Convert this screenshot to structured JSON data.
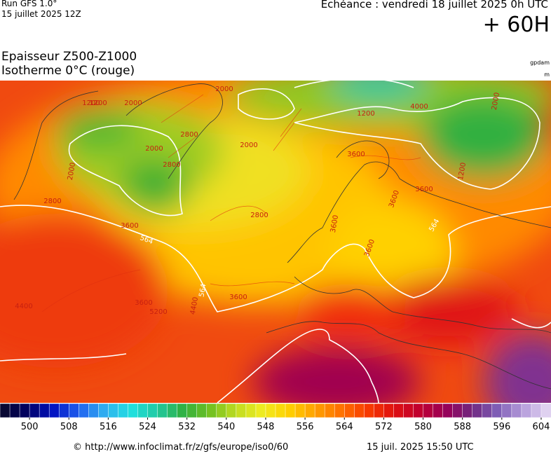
{
  "header": {
    "run": "Run GFS 1.0°",
    "run_date": "15 juillet 2025 12Z",
    "valid": "Echéance : vendredi 18 juillet 2025 0h UTC",
    "lead": "+ 60H",
    "title": "Epaisseur Z500-Z1000",
    "subtitle": "Isotherme 0°C (rouge)",
    "unit_main": "gpdam",
    "unit_iso": "m"
  },
  "map": {
    "contour_labels": [
      "1200",
      "2000",
      "2000",
      "2800",
      "2000",
      "2800",
      "3600",
      "564",
      "2000",
      "2800",
      "3600",
      "564",
      "4400",
      "3600",
      "5200",
      "4400",
      "2000",
      "2800",
      "1200",
      "4000",
      "1200",
      "2000",
      "3600",
      "3600",
      "3600",
      "564",
      "1200",
      "3600",
      "3600"
    ]
  },
  "colorbar": {
    "ticks": [
      500,
      508,
      516,
      524,
      532,
      540,
      548,
      556,
      564,
      572,
      580,
      588,
      596,
      604
    ],
    "range": [
      494,
      606
    ],
    "colors": [
      "#0a0a28",
      "#000060",
      "#0010c0",
      "#2060f0",
      "#30b0f0",
      "#20e0e0",
      "#20c8a0",
      "#30b040",
      "#70c020",
      "#c0dc20",
      "#f0ec20",
      "#ffd000",
      "#ffa000",
      "#ff7000",
      "#f83c00",
      "#e01010",
      "#c00030",
      "#980058",
      "#702880",
      "#8060b8",
      "#b8a0dc",
      "#e8dcf4"
    ]
  },
  "footer": {
    "source": "© http://www.infoclimat.fr/z/gfs/europe/iso0/60",
    "generated": "15 juil. 2025 15:50 UTC"
  }
}
